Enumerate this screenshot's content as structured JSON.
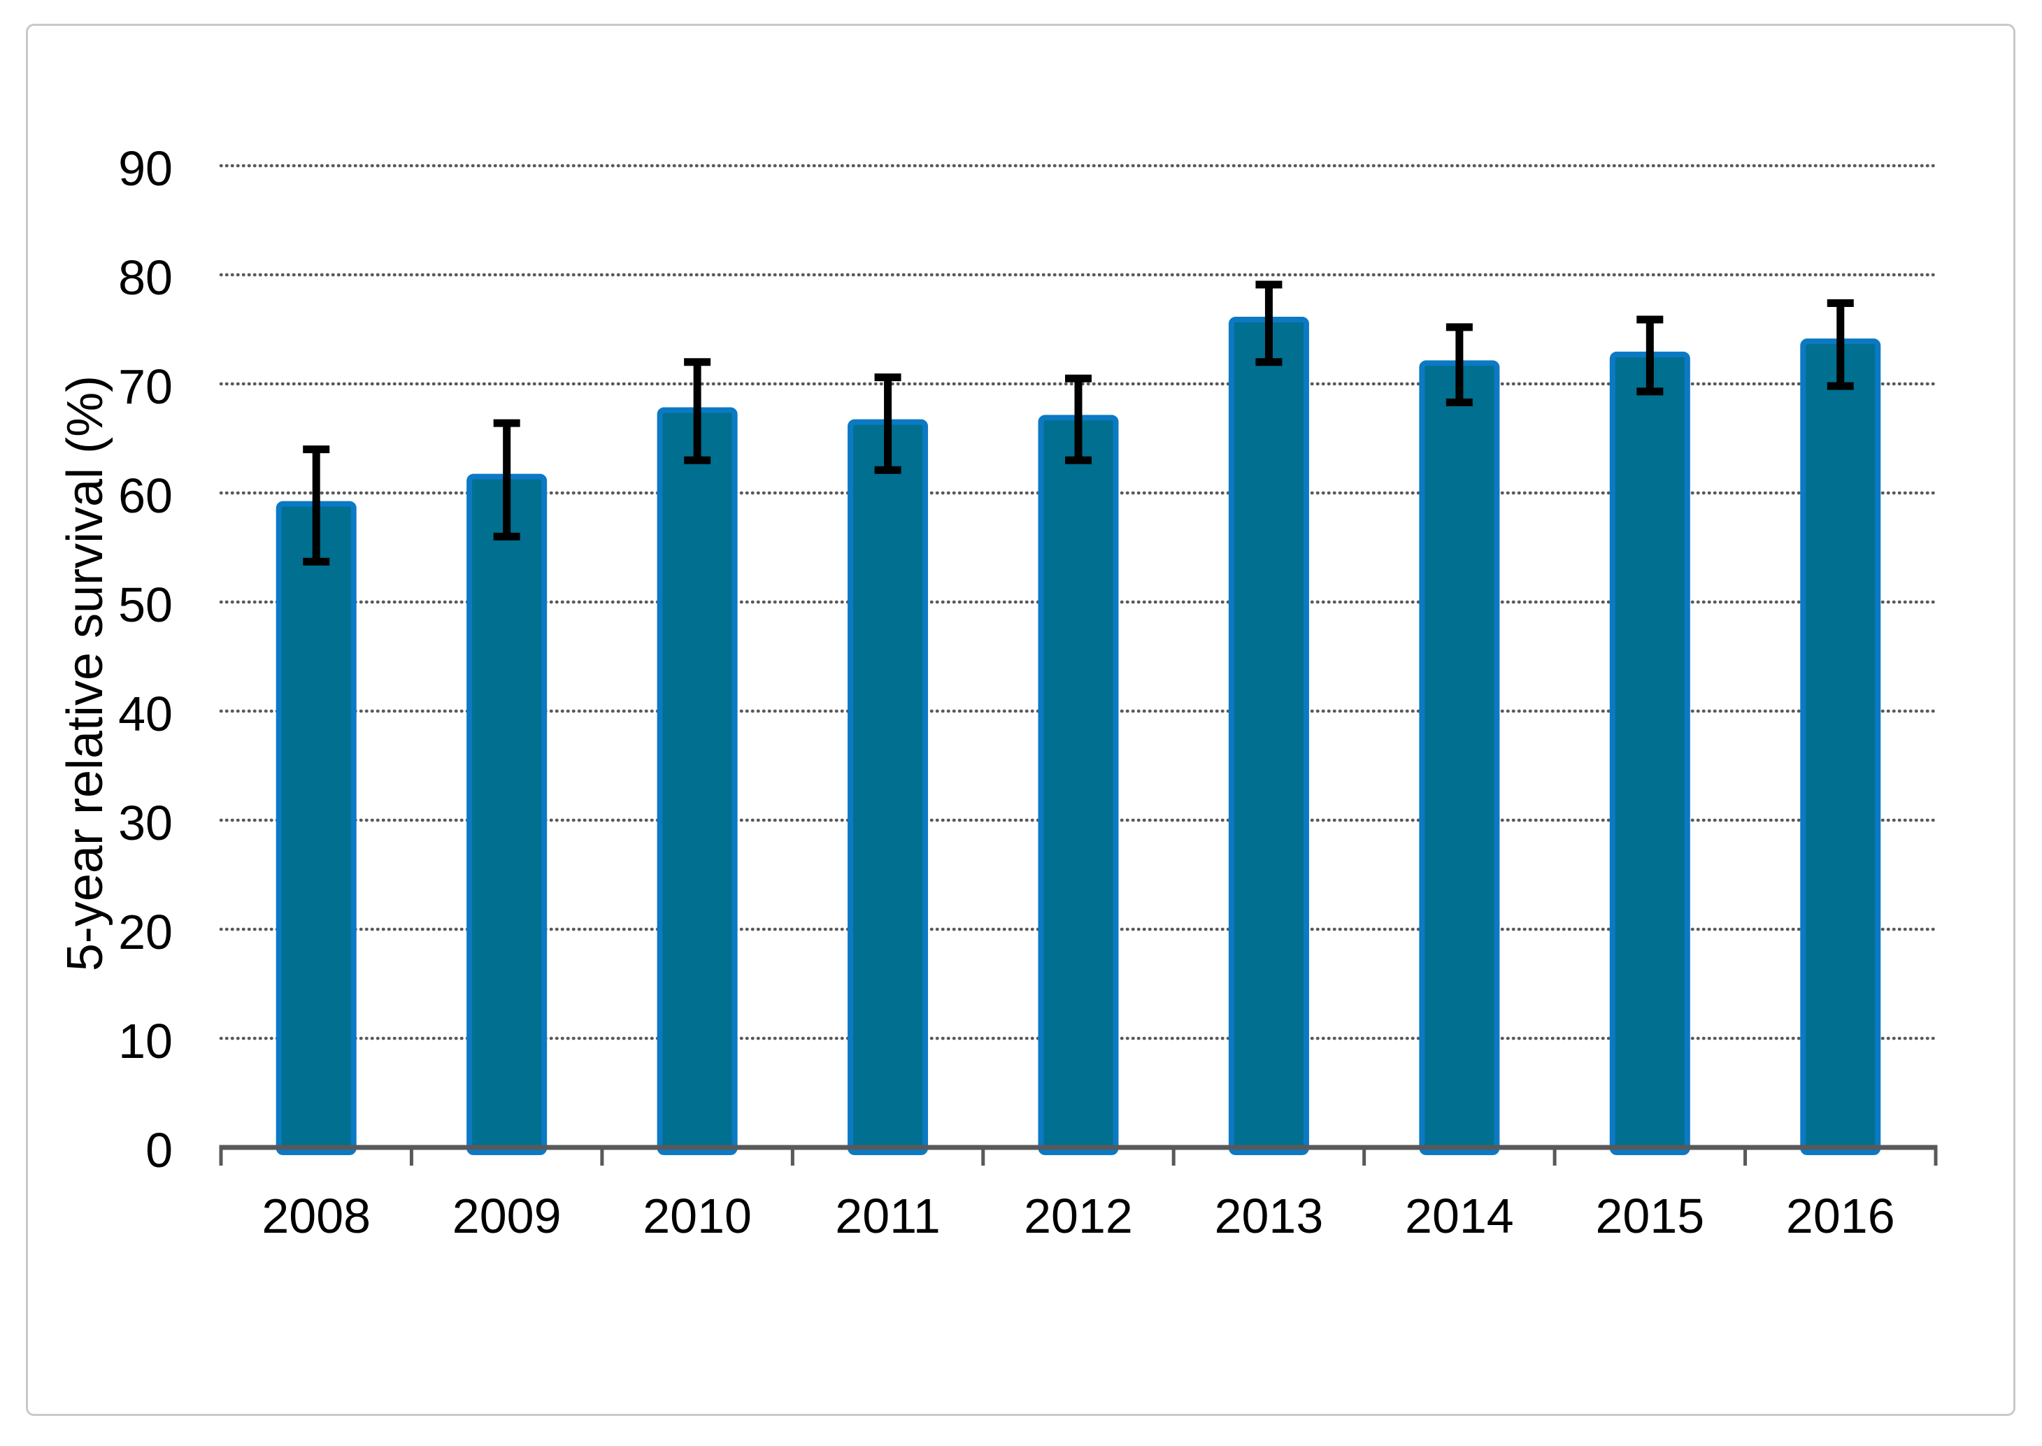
{
  "chart_data": {
    "type": "bar",
    "title": "",
    "xlabel": "",
    "ylabel": "5-year relative survival (%)",
    "categories": [
      "2008",
      "2009",
      "2010",
      "2011",
      "2012",
      "2013",
      "2014",
      "2015",
      "2016"
    ],
    "series": [
      {
        "name": "5-year relative survival (%)",
        "values": [
          59.0,
          61.5,
          67.6,
          66.5,
          66.9,
          75.9,
          71.9,
          72.7,
          73.9
        ],
        "error_low": [
          53.7,
          56.0,
          63.0,
          62.1,
          63.0,
          72.0,
          68.3,
          69.3,
          69.8
        ],
        "error_high": [
          64.0,
          66.4,
          72.0,
          70.6,
          70.5,
          79.1,
          75.2,
          75.9,
          77.4
        ]
      }
    ],
    "y_ticks": [
      0,
      10,
      20,
      30,
      40,
      50,
      60,
      70,
      80,
      90
    ],
    "ylim": [
      0,
      90
    ],
    "grid": "horizontal-dotted",
    "legend": "none",
    "error_bars": true
  },
  "colors": {
    "bar_fill": "#016F8F",
    "bar_border": "#0C79C4",
    "error_bar": "#000000",
    "axis_line": "#595959",
    "gridline": "#595959",
    "tick_label": "#000000",
    "frame_border": "#C9C9C9",
    "background": "#FFFFFF"
  }
}
